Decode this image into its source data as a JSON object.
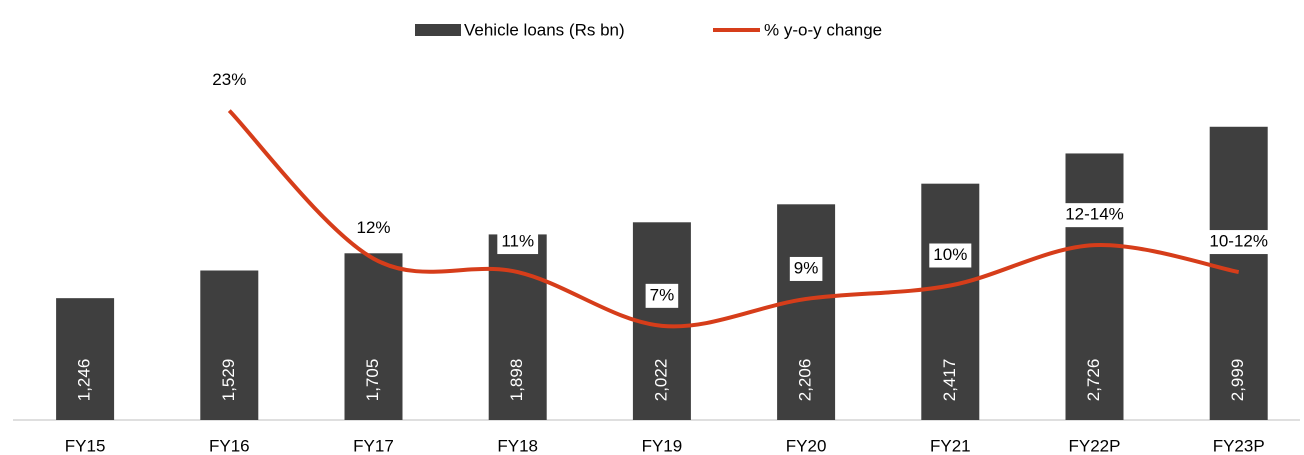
{
  "chart_data": {
    "type": "bar-line",
    "categories": [
      "FY15",
      "FY16",
      "FY17",
      "FY18",
      "FY19",
      "FY20",
      "FY21",
      "FY22P",
      "FY23P"
    ],
    "series": [
      {
        "name": "Vehicle loans (Rs bn)",
        "color": "#3f3f3f",
        "type": "bar",
        "values": [
          1246,
          1529,
          1705,
          1898,
          2022,
          2206,
          2417,
          2726,
          2999
        ],
        "value_labels": [
          "1,246",
          "1,529",
          "1,705",
          "1,898",
          "2,022",
          "2,206",
          "2,417",
          "2,726",
          "2,999"
        ]
      },
      {
        "name": "% y-o-y change",
        "color": "#d63d1a",
        "type": "line",
        "axis": "y2",
        "values": [
          null,
          23,
          12,
          11,
          7,
          9,
          10,
          13,
          11
        ],
        "value_labels": [
          null,
          "23%",
          "12%",
          "11%",
          "7%",
          "9%",
          "10%",
          "12-14%",
          "10-12%"
        ]
      }
    ],
    "ylim": [
      0,
      3150
    ],
    "y2lim": [
      0,
      22.9
    ],
    "legend": "top"
  }
}
